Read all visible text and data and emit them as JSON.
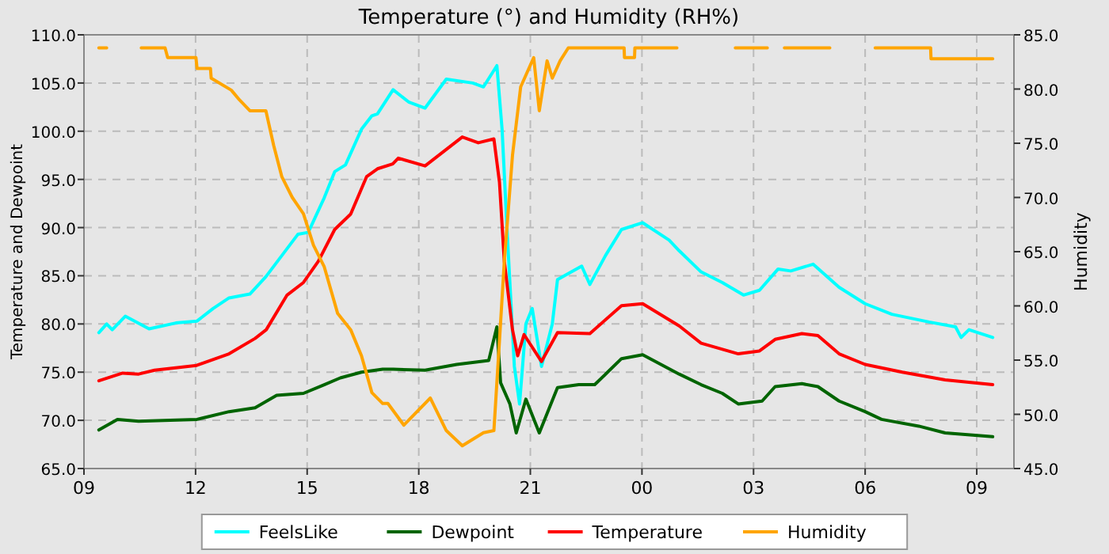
{
  "chart_data": {
    "type": "line",
    "title": "Temperature (°) and Humidity (RH%)",
    "ylabel": "Temperature and Dewpoint",
    "y2label": "Humidity",
    "xlim": [
      9,
      34
    ],
    "xticks": [
      {
        "value": 9,
        "label": "09"
      },
      {
        "value": 12,
        "label": "12"
      },
      {
        "value": 15,
        "label": "15"
      },
      {
        "value": 18,
        "label": "18"
      },
      {
        "value": 21,
        "label": "21"
      },
      {
        "value": 24,
        "label": "00"
      },
      {
        "value": 27,
        "label": "03"
      },
      {
        "value": 30,
        "label": "06"
      },
      {
        "value": 33,
        "label": "09"
      }
    ],
    "ylim": [
      65,
      110
    ],
    "yticks": [
      {
        "value": 65,
        "label": "65.0"
      },
      {
        "value": 70,
        "label": "70.0"
      },
      {
        "value": 75,
        "label": "75.0"
      },
      {
        "value": 80,
        "label": "80.0"
      },
      {
        "value": 85,
        "label": "85.0"
      },
      {
        "value": 90,
        "label": "90.0"
      },
      {
        "value": 95,
        "label": "95.0"
      },
      {
        "value": 100,
        "label": "100.0"
      },
      {
        "value": 105,
        "label": "105.0"
      },
      {
        "value": 110,
        "label": "110.0"
      }
    ],
    "y2lim": [
      45,
      85
    ],
    "y2ticks": [
      {
        "value": 45,
        "label": "45.0"
      },
      {
        "value": 50,
        "label": "50.0"
      },
      {
        "value": 55,
        "label": "55.0"
      },
      {
        "value": 60,
        "label": "60.0"
      },
      {
        "value": 65,
        "label": "65.0"
      },
      {
        "value": 70,
        "label": "70.0"
      },
      {
        "value": 75,
        "label": "75.0"
      },
      {
        "value": 80,
        "label": "80.0"
      },
      {
        "value": 85,
        "label": "85.0"
      }
    ],
    "grid": true,
    "legend": "bottom",
    "line_style": "solid",
    "marker": "none",
    "series": [
      {
        "name": "FeelsLike",
        "color": "#00ffff",
        "x": [
          9.4,
          9.61,
          9.76,
          10.11,
          10.75,
          11.47,
          12.04,
          12.47,
          12.9,
          13.46,
          13.89,
          14.32,
          14.75,
          15.03,
          15.46,
          15.74,
          16.03,
          16.46,
          16.74,
          16.89,
          17.31,
          17.74,
          18.17,
          18.74,
          19.45,
          19.74,
          20.1,
          20.24,
          20.38,
          20.57,
          20.71,
          20.88,
          21.05,
          21.3,
          21.59,
          21.73,
          22.38,
          22.6,
          23.02,
          23.45,
          24.02,
          24.73,
          25.0,
          25.59,
          26.16,
          26.73,
          27.16,
          27.66,
          28.0,
          28.6,
          29.3,
          30.0,
          30.72,
          31.72,
          32.43,
          32.58,
          32.79,
          33.43
        ],
        "values": [
          79.1,
          80,
          79.4,
          80.8,
          79.5,
          80.1,
          80.3,
          81.6,
          82.7,
          83.1,
          84.9,
          87.1,
          89.3,
          89.5,
          93.1,
          95.8,
          96.5,
          100.2,
          101.6,
          101.8,
          104.3,
          103,
          102.4,
          105.4,
          105,
          104.6,
          106.8,
          100.2,
          89.3,
          75.6,
          71.7,
          80,
          81.6,
          75.6,
          80,
          84.6,
          86,
          84.1,
          87.1,
          89.8,
          90.5,
          88.7,
          87.6,
          85.4,
          84.3,
          83,
          83.5,
          85.7,
          85.5,
          86.2,
          83.8,
          82.1,
          81,
          80.2,
          79.7,
          78.6,
          79.4,
          78.6
        ]
      },
      {
        "name": "Dewpoint",
        "color": "#006400",
        "x": [
          9.4,
          9.9,
          10.47,
          11.32,
          12.04,
          12.9,
          13.6,
          14.18,
          14.9,
          15.46,
          15.89,
          16.46,
          17.03,
          17.31,
          18.17,
          19.02,
          19.88,
          20.1,
          20.2,
          20.45,
          20.62,
          20.88,
          21.24,
          21.73,
          22.3,
          22.73,
          23.45,
          24.02,
          25.0,
          25.59,
          26.16,
          26.59,
          27.23,
          27.58,
          28.3,
          28.73,
          29.3,
          30.0,
          30.44,
          31.44,
          32.15,
          33.43
        ],
        "values": [
          69,
          70.1,
          69.9,
          70,
          70.1,
          70.9,
          71.3,
          72.6,
          72.8,
          73.7,
          74.4,
          75,
          75.3,
          75.3,
          75.2,
          75.8,
          76.2,
          79.7,
          73.9,
          71.7,
          68.7,
          72.2,
          68.7,
          73.4,
          73.7,
          73.7,
          76.4,
          76.8,
          74.8,
          73.7,
          72.8,
          71.7,
          72,
          73.5,
          73.8,
          73.5,
          72,
          70.9,
          70.1,
          69.4,
          68.7,
          68.3
        ]
      },
      {
        "name": "Temperature",
        "color": "#ff0000",
        "x": [
          9.4,
          10.04,
          10.47,
          10.9,
          12.03,
          12.9,
          13.6,
          13.9,
          14.46,
          14.9,
          15.3,
          15.74,
          16.17,
          16.6,
          16.89,
          17.3,
          17.45,
          18.17,
          19.17,
          19.6,
          20.02,
          20.17,
          20.3,
          20.52,
          20.66,
          20.83,
          21.3,
          21.73,
          22.6,
          23.45,
          24.02,
          25.0,
          25.59,
          26.59,
          27.16,
          27.58,
          28.3,
          28.73,
          29.3,
          30.0,
          31.0,
          32.15,
          33.43
        ],
        "values": [
          74.1,
          74.9,
          74.8,
          75.2,
          75.7,
          76.9,
          78.5,
          79.4,
          83,
          84.3,
          86.5,
          89.8,
          91.4,
          95.3,
          96.1,
          96.6,
          97.2,
          96.4,
          99.4,
          98.8,
          99.2,
          94.7,
          86.5,
          79.4,
          76.7,
          78.9,
          76.1,
          79.1,
          79,
          81.9,
          82.1,
          79.8,
          78,
          76.9,
          77.2,
          78.4,
          79,
          78.8,
          76.9,
          75.8,
          75,
          74.2,
          73.7
        ]
      },
      {
        "name": "Humidity",
        "color": "#ffa500",
        "axis": "y2",
        "x": [
          9.4,
          9.61,
          9.62,
          10.54,
          11.18,
          11.25,
          12.01,
          12.04,
          12.4,
          12.42,
          12.96,
          13.18,
          13.46,
          13.89,
          14.1,
          14.32,
          14.6,
          14.9,
          15.17,
          15.46,
          15.82,
          16.17,
          16.46,
          16.74,
          17.03,
          17.17,
          17.6,
          18.31,
          18.74,
          19.17,
          19.74,
          20.02,
          20.17,
          20.3,
          20.52,
          20.74,
          21.09,
          21.24,
          21.45,
          21.59,
          21.8,
          22.02,
          23.52,
          23.53,
          23.8,
          23.81,
          24.94,
          24.95,
          26.51,
          26.52,
          27.37,
          27.38,
          27.83,
          27.84,
          29.05,
          29.06,
          30.27,
          30.28,
          31.76,
          31.77,
          33.43
        ],
        "values": [
          83.8,
          83.8,
          null,
          83.8,
          83.8,
          82.9,
          82.9,
          81.9,
          81.9,
          81,
          79.9,
          79,
          78,
          78,
          74.8,
          71.9,
          70,
          68.5,
          65.6,
          63.6,
          59.3,
          57.8,
          55.4,
          52,
          51,
          51,
          49,
          51.5,
          48.5,
          47.1,
          48.3,
          48.5,
          56.8,
          64.1,
          73.9,
          80.2,
          82.9,
          78,
          82.6,
          81,
          82.6,
          83.8,
          83.8,
          82.9,
          82.9,
          83.8,
          83.8,
          null,
          83.8,
          83.8,
          83.8,
          null,
          83.8,
          83.8,
          83.8,
          null,
          83.8,
          83.8,
          83.8,
          82.8,
          82.8
        ]
      }
    ]
  }
}
